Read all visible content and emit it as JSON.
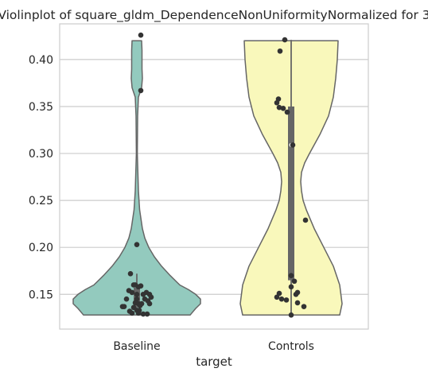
{
  "chart_data": {
    "type": "violin",
    "title": "Violinplot of square_gldm_DependenceNonUniformityNormalized for 3",
    "xlabel": "target",
    "ylabel": "",
    "categories": [
      "Baseline",
      "Controls"
    ],
    "ylim": [
      0.113,
      0.438
    ],
    "yticks": [
      0.15,
      0.2,
      0.25,
      0.3,
      0.35,
      0.4
    ],
    "ytick_labels": [
      "0.15",
      "0.20",
      "0.25",
      "0.30",
      "0.35",
      "0.40"
    ],
    "grid": "y",
    "series": [
      {
        "category": "Baseline",
        "color": "#93cabe",
        "density": [
          [
            0.128,
            0.67
          ],
          [
            0.135,
            0.74
          ],
          [
            0.14,
            0.8
          ],
          [
            0.145,
            0.8
          ],
          [
            0.15,
            0.74
          ],
          [
            0.155,
            0.65
          ],
          [
            0.16,
            0.54
          ],
          [
            0.17,
            0.42
          ],
          [
            0.18,
            0.31
          ],
          [
            0.19,
            0.22
          ],
          [
            0.2,
            0.15
          ],
          [
            0.21,
            0.1
          ],
          [
            0.22,
            0.07
          ],
          [
            0.24,
            0.035
          ],
          [
            0.26,
            0.02
          ],
          [
            0.3,
            0.006
          ],
          [
            0.34,
            0.01
          ],
          [
            0.36,
            0.02
          ],
          [
            0.37,
            0.06
          ],
          [
            0.38,
            0.07
          ],
          [
            0.39,
            0.065
          ],
          [
            0.41,
            0.065
          ],
          [
            0.42,
            0.06
          ]
        ],
        "quartiles": [
          0.137,
          0.157
        ],
        "whiskers": [
          0.128,
          0.172
        ],
        "median": 0.145,
        "points": [
          [
            0.05,
            0.426
          ],
          [
            0.05,
            0.367
          ],
          [
            0.0,
            0.203
          ],
          [
            -0.08,
            0.172
          ],
          [
            -0.04,
            0.16
          ],
          [
            -0.02,
            0.16
          ],
          [
            0.02,
            0.158
          ],
          [
            0.05,
            0.159
          ],
          [
            -0.1,
            0.154
          ],
          [
            -0.06,
            0.152
          ],
          [
            0.0,
            0.15
          ],
          [
            0.08,
            0.15
          ],
          [
            0.12,
            0.152
          ],
          [
            0.16,
            0.15
          ],
          [
            0.18,
            0.147
          ],
          [
            -0.13,
            0.145
          ],
          [
            0.0,
            0.145
          ],
          [
            0.1,
            0.145
          ],
          [
            0.14,
            0.143
          ],
          [
            -0.02,
            0.141
          ],
          [
            0.02,
            0.14
          ],
          [
            0.06,
            0.14
          ],
          [
            0.16,
            0.14
          ],
          [
            -0.18,
            0.137
          ],
          [
            -0.16,
            0.137
          ],
          [
            -0.04,
            0.136
          ],
          [
            0.04,
            0.138
          ],
          [
            -0.09,
            0.132
          ],
          [
            0.0,
            0.133
          ],
          [
            0.03,
            0.133
          ],
          [
            -0.06,
            0.13
          ],
          [
            0.02,
            0.13
          ],
          [
            0.08,
            0.129
          ],
          [
            0.13,
            0.129
          ]
        ]
      },
      {
        "category": "Controls",
        "color": "#f9f8bb",
        "density": [
          [
            0.128,
            0.61
          ],
          [
            0.14,
            0.64
          ],
          [
            0.16,
            0.61
          ],
          [
            0.18,
            0.53
          ],
          [
            0.2,
            0.41
          ],
          [
            0.22,
            0.29
          ],
          [
            0.24,
            0.19
          ],
          [
            0.25,
            0.15
          ],
          [
            0.26,
            0.13
          ],
          [
            0.27,
            0.12
          ],
          [
            0.28,
            0.13
          ],
          [
            0.29,
            0.17
          ],
          [
            0.3,
            0.23
          ],
          [
            0.32,
            0.36
          ],
          [
            0.34,
            0.47
          ],
          [
            0.36,
            0.53
          ],
          [
            0.38,
            0.56
          ],
          [
            0.4,
            0.58
          ],
          [
            0.42,
            0.59
          ]
        ],
        "quartiles": [
          0.165,
          0.35
        ],
        "whiskers": [
          0.128,
          0.421
        ],
        "median": 0.309,
        "points": [
          [
            -0.08,
            0.421
          ],
          [
            -0.14,
            0.409
          ],
          [
            -0.16,
            0.358
          ],
          [
            -0.18,
            0.354
          ],
          [
            -0.15,
            0.349
          ],
          [
            -0.1,
            0.348
          ],
          [
            -0.05,
            0.344
          ],
          [
            0.02,
            0.309
          ],
          [
            0.18,
            0.229
          ],
          [
            0.0,
            0.17
          ],
          [
            0.04,
            0.164
          ],
          [
            0.0,
            0.158
          ],
          [
            -0.15,
            0.151
          ],
          [
            0.08,
            0.152
          ],
          [
            0.06,
            0.15
          ],
          [
            -0.18,
            0.147
          ],
          [
            -0.12,
            0.145
          ],
          [
            -0.06,
            0.144
          ],
          [
            0.08,
            0.141
          ],
          [
            0.16,
            0.137
          ],
          [
            0.0,
            0.128
          ]
        ]
      }
    ]
  }
}
